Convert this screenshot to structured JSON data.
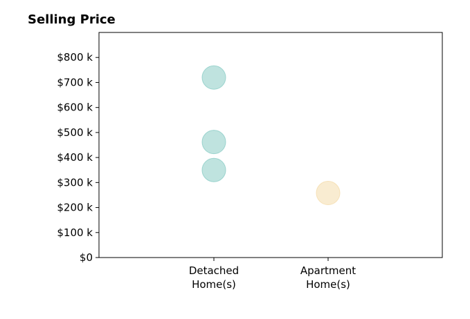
{
  "chart_data": {
    "type": "scatter",
    "title": "Selling Price",
    "xlabel": "",
    "ylabel": "",
    "categories": [
      [
        "Detached",
        "Home(s)"
      ],
      [
        "Apartment",
        "Home(s)"
      ]
    ],
    "ylim": [
      0,
      900000
    ],
    "y_ticks": [
      0,
      100000,
      200000,
      300000,
      400000,
      500000,
      600000,
      700000,
      800000
    ],
    "y_tick_labels": [
      "$0",
      "$100 k",
      "$200 k",
      "$300 k",
      "$400 k",
      "$500 k",
      "$600 k",
      "$700 k",
      "$800 k"
    ],
    "grid": false,
    "points": [
      {
        "category": 0,
        "value": 720000,
        "color": "#7fc8c0"
      },
      {
        "category": 0,
        "value": 462000,
        "color": "#7fc8c0"
      },
      {
        "category": 0,
        "value": 350000,
        "color": "#7fc8c0"
      },
      {
        "category": 1,
        "value": 258000,
        "color": "#f4d9a4"
      }
    ]
  }
}
